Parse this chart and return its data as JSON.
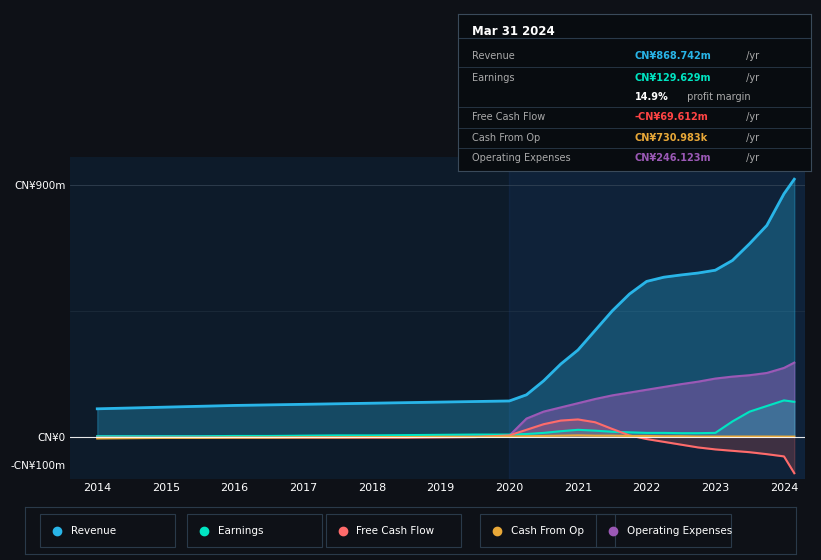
{
  "background_color": "#0e1117",
  "plot_bg_color": "#0d1b2a",
  "grid_color": "#2a3a4a",
  "revenue_color": "#29b5e8",
  "earnings_color": "#00e5c2",
  "fcf_color": "#ff6b6b",
  "cashop_color": "#e8a838",
  "opex_color": "#9b59b6",
  "fcf_neg_color": "#ff4444",
  "tooltip_title": "Mar 31 2024",
  "tooltip_rows": [
    {
      "label": "Revenue",
      "val_colored": "CN¥868.742m",
      "val_suffix": " /yr",
      "val_color": "#29b5e8",
      "has_divider": true
    },
    {
      "label": "Earnings",
      "val_colored": "CN¥129.629m",
      "val_suffix": " /yr",
      "val_color": "#00e5c2",
      "has_divider": false
    },
    {
      "label": "",
      "val_colored": "14.9%",
      "val_suffix": " profit margin",
      "val_color": "#ffffff",
      "has_divider": true
    },
    {
      "label": "Free Cash Flow",
      "val_colored": "-CN¥69.612m",
      "val_suffix": " /yr",
      "val_color": "#ff4444",
      "has_divider": true
    },
    {
      "label": "Cash From Op",
      "val_colored": "CN¥730.983k",
      "val_suffix": " /yr",
      "val_color": "#e8a838",
      "has_divider": true
    },
    {
      "label": "Operating Expenses",
      "val_colored": "CN¥246.123m",
      "val_suffix": " /yr",
      "val_color": "#9b59b6",
      "has_divider": true
    }
  ],
  "legend_items": [
    {
      "label": "Revenue",
      "color": "#29b5e8"
    },
    {
      "label": "Earnings",
      "color": "#00e5c2"
    },
    {
      "label": "Free Cash Flow",
      "color": "#ff6b6b"
    },
    {
      "label": "Cash From Op",
      "color": "#e8a838"
    },
    {
      "label": "Operating Expenses",
      "color": "#9b59b6"
    }
  ],
  "ytick_vals": [
    -100,
    0,
    900
  ],
  "ytick_labels": [
    "-CN¥100m",
    "CN¥0",
    "CN¥900m"
  ],
  "xtick_vals": [
    2014,
    2015,
    2016,
    2017,
    2018,
    2019,
    2020,
    2021,
    2022,
    2023,
    2024
  ],
  "xtick_labels": [
    "2014",
    "2015",
    "2016",
    "2017",
    "2018",
    "2019",
    "2020",
    "2021",
    "2022",
    "2023",
    "2024"
  ],
  "xlim": [
    2013.6,
    2024.3
  ],
  "ylim": [
    -150,
    1000
  ]
}
